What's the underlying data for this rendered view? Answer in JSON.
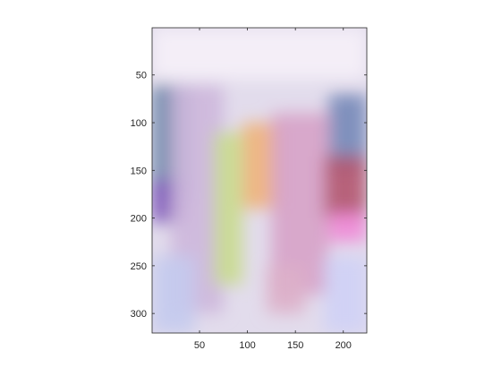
{
  "chart_data": {
    "type": "heatmap",
    "title": "",
    "xlabel": "",
    "ylabel": "",
    "xlim": [
      0.5,
      224.5
    ],
    "ylim": [
      0.5,
      320.5
    ],
    "y_direction": "reverse",
    "grid": false,
    "colorbar": false,
    "content": "blurred RGB image",
    "x_ticks": [
      50,
      100,
      150,
      200
    ],
    "y_ticks": [
      50,
      100,
      150,
      200,
      250,
      300
    ],
    "x_tick_labels": [
      "50",
      "100",
      "150",
      "200"
    ],
    "y_tick_labels": [
      "50",
      "100",
      "150",
      "200",
      "250",
      "300"
    ],
    "color_regions": [
      {
        "x": [
          0.5,
          224.5
        ],
        "y": [
          0.5,
          55
        ],
        "color": "#f6f1f8"
      },
      {
        "x": [
          0.5,
          40
        ],
        "y": [
          60,
          180
        ],
        "color": "#6a86a8"
      },
      {
        "x": [
          0.5,
          35
        ],
        "y": [
          160,
          205
        ],
        "color": "#7a4fb8"
      },
      {
        "x": [
          20,
          75
        ],
        "y": [
          60,
          300
        ],
        "color": "#cdb7dc"
      },
      {
        "x": [
          65,
          95
        ],
        "y": [
          110,
          270
        ],
        "color": "#c9dc8e"
      },
      {
        "x": [
          95,
          135
        ],
        "y": [
          100,
          190
        ],
        "color": "#f0b37a"
      },
      {
        "x": [
          125,
          185
        ],
        "y": [
          90,
          280
        ],
        "color": "#d7a2c8"
      },
      {
        "x": [
          185,
          224.5
        ],
        "y": [
          70,
          150
        ],
        "color": "#7688b8"
      },
      {
        "x": [
          180,
          224.5
        ],
        "y": [
          135,
          200
        ],
        "color": "#b3556f"
      },
      {
        "x": [
          185,
          224.5
        ],
        "y": [
          195,
          225
        ],
        "color": "#f08ad6"
      },
      {
        "x": [
          0.5,
          45
        ],
        "y": [
          240,
          320.5
        ],
        "color": "#c4cbee"
      },
      {
        "x": [
          180,
          224.5
        ],
        "y": [
          240,
          320.5
        ],
        "color": "#cfd2f6"
      },
      {
        "x": [
          120,
          160
        ],
        "y": [
          250,
          300
        ],
        "color": "#ddb0c9"
      }
    ]
  }
}
